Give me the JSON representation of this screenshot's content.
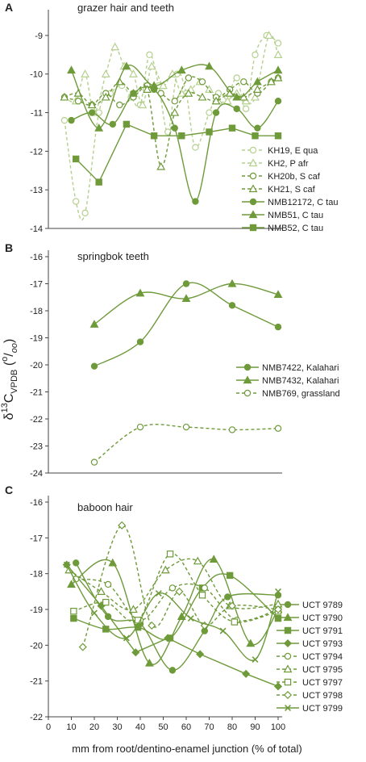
{
  "xlabel": "mm from root/dentino-enamel junction (% of total)",
  "ylabel": {
    "prefix": "δ",
    "sup": "13",
    "main": "C",
    "sub": "VPDB",
    "unit_open": " (",
    "unit_sup": "o",
    "unit_mid": "/",
    "unit_sub": "oo",
    "unit_close": ")"
  },
  "chart_data": [
    {
      "type": "line",
      "letter": "A",
      "title": "grazer hair and teeth",
      "xlim": [
        0,
        100
      ],
      "xticks": [],
      "ylim": [
        -14,
        -8.5
      ],
      "yticks": [
        -14,
        -13,
        -12,
        -11,
        -10,
        -9
      ],
      "grid": false,
      "legend": "right",
      "series": [
        {
          "name": "KH19, E qua",
          "color": "#b5d08f",
          "marker": "circle-open",
          "dash": true,
          "smooth": true,
          "x": [
            7,
            12,
            16,
            22,
            27,
            32,
            36,
            40,
            44,
            48,
            52,
            56,
            60,
            64,
            70,
            74,
            78,
            82,
            86,
            90,
            95,
            100
          ],
          "y": [
            -11.2,
            -13.3,
            -13.6,
            -11.0,
            -10.5,
            -10.3,
            -10.6,
            -10.8,
            -9.5,
            -10.3,
            -11.5,
            -10.0,
            -10.5,
            -11.9,
            -11.0,
            -10.5,
            -10.6,
            -10.1,
            -10.9,
            -9.5,
            -9.0,
            -9.2
          ]
        },
        {
          "name": "KH2, P afr",
          "color": "#b5d08f",
          "marker": "triangle-open",
          "dash": true,
          "smooth": true,
          "x": [
            7,
            12,
            16,
            20,
            25,
            29,
            33,
            37,
            41,
            45,
            50,
            54,
            58,
            62,
            66,
            70,
            74,
            78,
            82,
            86,
            90,
            96,
            100
          ],
          "y": [
            -10.6,
            -10.7,
            -10.0,
            -11.0,
            -10.0,
            -9.3,
            -9.8,
            -10.0,
            -10.8,
            -9.8,
            -10.3,
            -10.0,
            -10.5,
            -10.4,
            -10.2,
            -10.4,
            -10.7,
            -10.7,
            -10.5,
            -10.7,
            -10.6,
            -9.0,
            -9.5
          ]
        },
        {
          "name": "KH20b, S caf",
          "color": "#6e9a3a",
          "marker": "circle-open",
          "dash": true,
          "smooth": true,
          "x": [
            7,
            13,
            19,
            25,
            31,
            37,
            43,
            49,
            55,
            61,
            67,
            73,
            79,
            85,
            91,
            97,
            100
          ],
          "y": [
            -10.6,
            -10.7,
            -10.8,
            -10.5,
            -10.8,
            -10.6,
            -10.3,
            -10.5,
            -10.7,
            -10.1,
            -10.2,
            -10.6,
            -10.4,
            -10.2,
            -10.5,
            -10.2,
            -10.1
          ]
        },
        {
          "name": "KH21, S caf",
          "color": "#6e9a3a",
          "marker": "triangle-open",
          "dash": true,
          "smooth": true,
          "x": [
            7,
            13,
            19,
            25,
            31,
            37,
            43,
            49,
            55,
            61,
            67,
            73,
            79,
            85,
            91,
            97,
            100
          ],
          "y": [
            -10.6,
            -10.5,
            -10.8,
            -10.6,
            -10.2,
            -10.5,
            -10.4,
            -12.4,
            -11.0,
            -10.5,
            -10.6,
            -10.7,
            -10.5,
            -10.6,
            -10.4,
            -10.2,
            -10.1
          ]
        },
        {
          "name": "NMB12172, C tau",
          "color": "#6e9a3a",
          "marker": "circle",
          "dash": false,
          "smooth": true,
          "x": [
            10,
            19,
            28,
            37,
            46,
            55,
            64,
            73,
            82,
            91,
            100
          ],
          "y": [
            -11.2,
            -11.0,
            -11.3,
            -10.5,
            -10.4,
            -11.4,
            -13.3,
            -11.0,
            -10.9,
            -11.4,
            -10.7
          ]
        },
        {
          "name": "NMB51, C tau",
          "color": "#6e9a3a",
          "marker": "triangle",
          "dash": false,
          "smooth": true,
          "x": [
            10,
            22,
            34,
            46,
            58,
            70,
            82,
            91,
            100
          ],
          "y": [
            -9.9,
            -11.4,
            -9.8,
            -10.3,
            -9.9,
            -9.8,
            -10.6,
            -10.2,
            -9.9
          ]
        },
        {
          "name": "NMB52, C tau",
          "color": "#6e9a3a",
          "marker": "square",
          "dash": false,
          "smooth": false,
          "x": [
            12,
            22,
            34,
            46,
            58,
            70,
            80,
            90,
            100
          ],
          "y": [
            -12.2,
            -12.8,
            -11.3,
            -11.6,
            -11.6,
            -11.5,
            -11.4,
            -11.6,
            -11.6
          ]
        }
      ]
    },
    {
      "type": "line",
      "letter": "B",
      "title": "springbok teeth",
      "xlim": [
        0,
        100
      ],
      "xticks": [],
      "ylim": [
        -24,
        -16
      ],
      "yticks": [
        -24,
        -23,
        -22,
        -21,
        -20,
        -19,
        -18,
        -17,
        -16
      ],
      "grid": false,
      "legend": "right",
      "series": [
        {
          "name": "NMB7422, Kalahari",
          "color": "#6e9a3a",
          "marker": "circle",
          "dash": false,
          "smooth": true,
          "x": [
            20,
            40,
            60,
            80,
            100
          ],
          "y": [
            -20.05,
            -19.15,
            -17.0,
            -17.8,
            -18.6
          ]
        },
        {
          "name": "NMB7432, Kalahari",
          "color": "#6e9a3a",
          "marker": "triangle",
          "dash": false,
          "smooth": true,
          "x": [
            20,
            40,
            60,
            80,
            100
          ],
          "y": [
            -18.5,
            -17.35,
            -17.55,
            -17.0,
            -17.4
          ]
        },
        {
          "name": "NMB769, grassland",
          "color": "#6e9a3a",
          "marker": "circle-open",
          "dash": true,
          "smooth": true,
          "x": [
            20,
            40,
            60,
            80,
            100
          ],
          "y": [
            -23.6,
            -22.3,
            -22.3,
            -22.4,
            -22.35
          ]
        }
      ]
    },
    {
      "type": "line",
      "letter": "C",
      "title": "baboon hair",
      "xlim": [
        0,
        100
      ],
      "xticks": [
        0,
        10,
        20,
        30,
        40,
        50,
        60,
        70,
        80,
        90,
        100
      ],
      "ylim": [
        -22,
        -16
      ],
      "yticks": [
        -22,
        -21,
        -20,
        -19,
        -18,
        -17,
        -16
      ],
      "grid": false,
      "legend": "right",
      "series": [
        {
          "name": "UCT 9789",
          "color": "#6e9a3a",
          "marker": "circle",
          "dash": false,
          "smooth": true,
          "x": [
            12,
            26,
            40,
            54,
            68,
            78,
            100
          ],
          "y": [
            -17.7,
            -19.2,
            -19.4,
            -20.7,
            -19.6,
            -18.65,
            -18.6
          ]
        },
        {
          "name": "UCT 9790",
          "color": "#6e9a3a",
          "marker": "triangle",
          "dash": false,
          "smooth": true,
          "x": [
            10,
            28,
            44,
            58,
            72,
            88,
            100
          ],
          "y": [
            -18.3,
            -17.7,
            -20.5,
            -19.2,
            -17.6,
            -19.95,
            -19.0
          ]
        },
        {
          "name": "UCT 9791",
          "color": "#6e9a3a",
          "marker": "square",
          "dash": false,
          "smooth": true,
          "x": [
            11,
            25,
            39,
            53,
            67,
            79,
            100
          ],
          "y": [
            -19.25,
            -19.55,
            -19.5,
            -19.8,
            -18.4,
            -18.05,
            -19.25
          ]
        },
        {
          "name": "UCT 9793",
          "color": "#6e9a3a",
          "marker": "diamond",
          "dash": false,
          "smooth": false,
          "x": [
            8,
            23,
            38,
            52,
            66,
            86,
            100
          ],
          "y": [
            -17.75,
            -18.9,
            -20.2,
            -19.8,
            -20.25,
            -20.8,
            -21.15
          ]
        },
        {
          "name": "UCT 9794",
          "color": "#6e9a3a",
          "marker": "circle-open",
          "dash": true,
          "smooth": true,
          "x": [
            12,
            26,
            40,
            54,
            68,
            82,
            100
          ],
          "y": [
            -18.15,
            -18.3,
            -19.3,
            -18.4,
            -18.4,
            -19.3,
            -19.0
          ]
        },
        {
          "name": "UCT 9795",
          "color": "#6e9a3a",
          "marker": "triangle-open",
          "dash": true,
          "smooth": true,
          "x": [
            9,
            23,
            37,
            51,
            65,
            79,
            100
          ],
          "y": [
            -17.9,
            -18.5,
            -19.0,
            -17.9,
            -17.65,
            -18.9,
            -18.85
          ]
        },
        {
          "name": "UCT 9797",
          "color": "#6e9a3a",
          "marker": "square-open",
          "dash": true,
          "smooth": true,
          "x": [
            11,
            25,
            39,
            53,
            67,
            81,
            100
          ],
          "y": [
            -19.05,
            -18.8,
            -19.3,
            -17.45,
            -18.6,
            -19.35,
            -19.05
          ]
        },
        {
          "name": "UCT 9798",
          "color": "#6e9a3a",
          "marker": "diamond-open",
          "dash": true,
          "smooth": true,
          "x": [
            15,
            32,
            45,
            57,
            68,
            80,
            100
          ],
          "y": [
            -20.05,
            -16.65,
            -19.45,
            -18.5,
            -19.45,
            -18.9,
            -19.0
          ]
        },
        {
          "name": "UCT 9799",
          "color": "#6e9a3a",
          "marker": "x",
          "dash": false,
          "smooth": true,
          "x": [
            8,
            20,
            34,
            48,
            62,
            76,
            90,
            100
          ],
          "y": [
            -17.75,
            -19.1,
            -19.8,
            -18.55,
            -19.25,
            -19.6,
            -20.4,
            -18.5
          ]
        }
      ]
    }
  ]
}
